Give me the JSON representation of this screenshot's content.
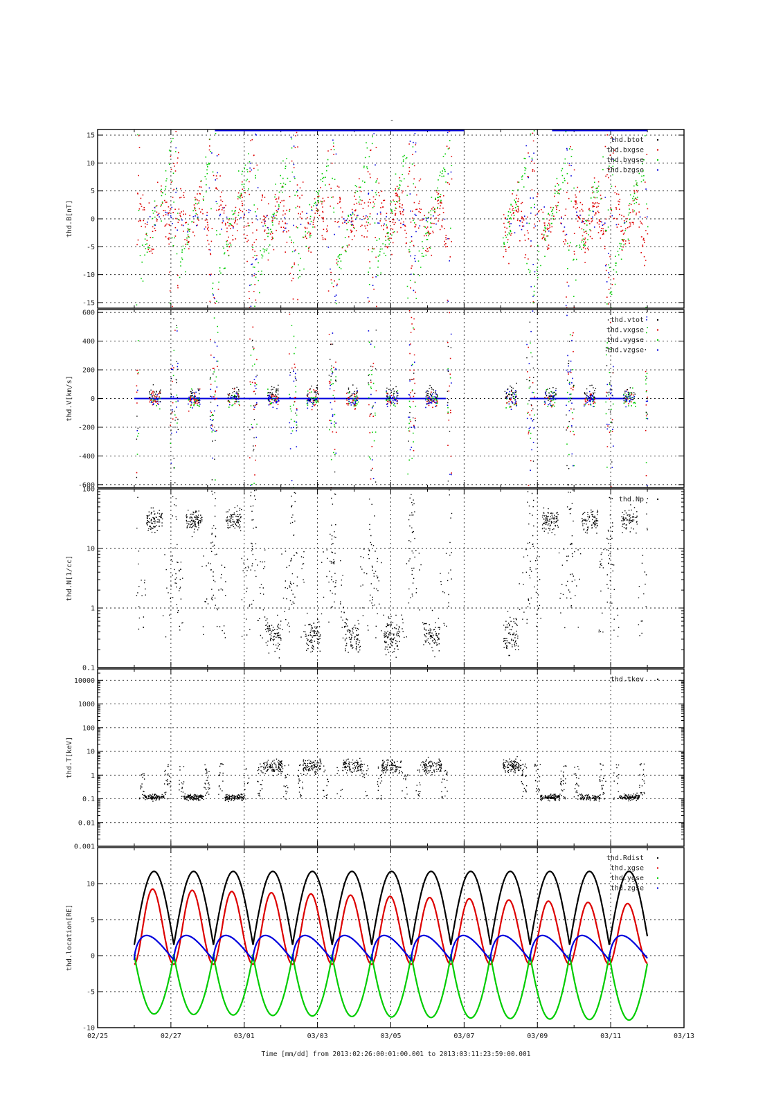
{
  "figure": {
    "title_mark": "-",
    "xlabel": "Time [mm/dd]  from 2013:02:26:00:01:00.001  to  2013:03:11:23:59:00.001"
  },
  "colors": {
    "black": "#000000",
    "red": "#dd0000",
    "green": "#00cc00",
    "blue": "#0000dd"
  },
  "chart_data": [
    {
      "id": "B",
      "type": "scatter",
      "ylabel": "thd.B[nT]",
      "ylim": [
        -16,
        16
      ],
      "scale": "linear",
      "yticks": [
        -15,
        -10,
        -5,
        0,
        5,
        10,
        15
      ],
      "ytick_labels": [
        "-15",
        "-10",
        "-5",
        "0",
        "5",
        "10",
        "15"
      ],
      "legend": "top-right",
      "series": [
        {
          "name": "thd.btot",
          "color": "#000000"
        },
        {
          "name": "thd.bxgse",
          "color": "#dd0000"
        },
        {
          "name": "thd.bygse",
          "color": "#00cc00"
        },
        {
          "name": "thd.bzgse",
          "color": "#0000dd"
        }
      ]
    },
    {
      "id": "V",
      "type": "scatter",
      "ylabel": "thd.V[km/s]",
      "ylim": [
        -620,
        620
      ],
      "scale": "linear",
      "yticks": [
        -600,
        -400,
        -200,
        0,
        200,
        400,
        600
      ],
      "ytick_labels": [
        "-600",
        "-400",
        "-200",
        "0",
        "200",
        "400",
        "600"
      ],
      "legend": "top-right",
      "series": [
        {
          "name": "thd.vtot",
          "color": "#000000"
        },
        {
          "name": "thd.vxgse",
          "color": "#dd0000"
        },
        {
          "name": "thd.vygse",
          "color": "#00cc00"
        },
        {
          "name": "thd.vzgse",
          "color": "#0000dd"
        }
      ]
    },
    {
      "id": "N",
      "type": "scatter",
      "ylabel": "thd.N[1/cc]",
      "ylim": [
        0.1,
        100
      ],
      "scale": "log",
      "yticks": [
        0.1,
        1,
        10,
        100
      ],
      "ytick_labels": [
        "0.1",
        "1",
        "10",
        "100"
      ],
      "legend": "top-right",
      "series": [
        {
          "name": "thd.Np",
          "color": "#000000"
        }
      ]
    },
    {
      "id": "T",
      "type": "scatter",
      "ylabel": "thd.T[keV]",
      "ylim": [
        0.001,
        30000
      ],
      "scale": "log",
      "yticks": [
        0.001,
        0.01,
        0.1,
        1,
        10,
        100,
        1000,
        10000
      ],
      "ytick_labels": [
        "0.001",
        "0.01",
        "0.1",
        "1",
        "10",
        "100",
        "1000",
        "10000"
      ],
      "legend": "top-right",
      "series": [
        {
          "name": "thd.tkev",
          "color": "#000000"
        }
      ]
    },
    {
      "id": "L",
      "type": "line",
      "ylabel": "thd.location[RE]",
      "ylim": [
        -10,
        15
      ],
      "scale": "linear",
      "yticks": [
        -10,
        -5,
        0,
        5,
        10
      ],
      "ytick_labels": [
        "-10",
        "-5",
        "0",
        "5",
        "10"
      ],
      "legend": "top-right",
      "series": [
        {
          "name": "thd.Rdist",
          "color": "#000000"
        },
        {
          "name": "thd.xgse",
          "color": "#dd0000"
        },
        {
          "name": "thd.ygse",
          "color": "#00cc00"
        },
        {
          "name": "thd.zgse",
          "color": "#0000dd"
        }
      ]
    }
  ],
  "x_axis": {
    "range": [
      "02/25",
      "03/13"
    ],
    "ticks": [
      "02/25",
      "02/27",
      "03/01",
      "03/03",
      "03/05",
      "03/07",
      "03/09",
      "03/11",
      "03/13"
    ]
  },
  "orbit": {
    "period_days": 1.08,
    "first_perigee": "02/26 00:00",
    "rdist_apogee": 11.7,
    "perigee": 1.5
  },
  "data_coverage": {
    "start": "02/26",
    "end": "03/11",
    "gap": [
      "03/06",
      "03/08"
    ]
  }
}
